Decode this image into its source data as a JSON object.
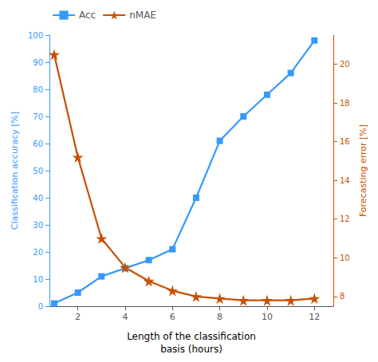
{
  "chart_data": {
    "type": "line",
    "x": [
      1,
      2,
      3,
      4,
      5,
      6,
      7,
      8,
      9,
      10,
      11,
      12
    ],
    "series": [
      {
        "name": "Acc",
        "color": "#3399ff",
        "marker": "square",
        "values": [
          1,
          5,
          11,
          14,
          17,
          21,
          40,
          61,
          70,
          78,
          86,
          98
        ]
      },
      {
        "name": "nMAE",
        "color": "#c85000",
        "marker": "star",
        "axis": "y2",
        "values": [
          20.5,
          15.2,
          11.0,
          9.5,
          8.8,
          8.3,
          8.0,
          7.9,
          7.8,
          7.8,
          7.8,
          7.9
        ]
      }
    ],
    "xlabel": "Length of the classification\nbasis (hours)",
    "ylabel": "Classification accuracy [%]",
    "y2label": "Forecasting error [%]",
    "xlim": [
      0.8,
      12.8
    ],
    "xticks": [
      2,
      4,
      6,
      8,
      10,
      12
    ],
    "ylim": [
      0,
      100
    ],
    "yticks": [
      0,
      10,
      20,
      30,
      40,
      50,
      60,
      70,
      80,
      90,
      100
    ],
    "y2lim": [
      7.5,
      21.5
    ],
    "y2ticks": [
      8,
      10,
      12,
      14,
      16,
      18,
      20
    ],
    "grid": false,
    "legend": "upper left"
  }
}
